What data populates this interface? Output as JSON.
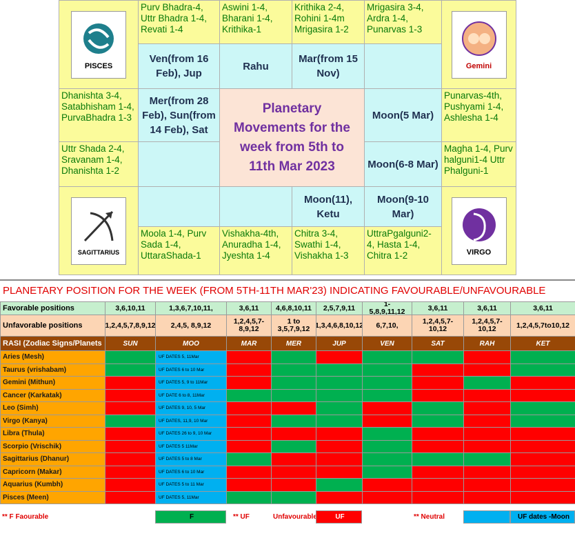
{
  "rasi_chart": {
    "title": "Planetary Movements for the week from 5th to 11th Mar 2023",
    "emblems": [
      "PISCES",
      "Gemini",
      "SAGITTARIUS",
      "VIRGO"
    ],
    "houses": [
      {
        "nakshatras": "Purv Bhadra-4, Uttr Bhadra 1-4, Revati 1-4",
        "planets": "Ven(from 16 Feb), Jup"
      },
      {
        "nakshatras": "Aswini 1-4, Bharani 1-4, Krithika-1",
        "planets": "Rahu"
      },
      {
        "nakshatras": "Krithika 2-4, Rohini 1-4m Mrigasira 1-2",
        "planets": "Mar(from 15 Nov)"
      },
      {
        "nakshatras": "Mrigasira 3-4, Ardra 1-4, Punarvas 1-3"
      },
      {
        "nakshatras": "Punarvas-4th, Pushyami 1-4, Ashlesha 1-4",
        "planets": "Moon(5 Mar)"
      },
      {
        "nakshatras": "Magha 1-4, Purv halguni1-4 Uttr Phalguni-1",
        "planets": "Moon(6-8 Mar)"
      },
      {
        "nakshatras": "UttraPgalguni2-4, Hasta 1-4, Chitra 1-2",
        "planets": "Moon(9-10 Mar)"
      },
      {
        "nakshatras": "Chitra 3-4, Swathi 1-4, Vishakha 1-3",
        "planets": "Moon(11), Ketu"
      },
      {
        "nakshatras": "Vishakha-4th, Anuradha 1-4, Jyeshta 1-4"
      },
      {
        "nakshatras": "Moola 1-4, Purv Sada 1-4, UttaraShada-1"
      },
      {
        "nakshatras": "Uttr Shada 2-4, Sravanam 1-4, Dhanishta 1-2"
      },
      {
        "nakshatras": "Dhanishta 3-4, Satabhisham 1-4, PurvaBhadra 1-3",
        "planets": "Mer(from 28 Feb), Sun(from 14 Feb), Sat"
      }
    ]
  },
  "table": {
    "title": "PLANETARY POSITION FOR THE WEEK (FROM 5TH-11TH MAR'23) INDICATING FAVOURABLE/UNFAVOURABLE",
    "favorable": {
      "label": "Favorable positions",
      "cells": [
        "3,6,10,11",
        "1,3,6,7,10,11,",
        "3,6,11",
        "4,6,8,10,11",
        "2,5,7,9,11",
        "1-5,8,9,11,12",
        "3,6,11",
        "3,6,11",
        "3,6,11"
      ]
    },
    "unfavorable": {
      "label": "Unfavorable positions",
      "cells": [
        "1,2,4,5,7,8,9,12",
        "2,4,5, 8,9,12",
        "1,2,4,5,7-8,9,12",
        "1 to 3,5,7,9,12",
        "1,3,4,6,8,10,12",
        "6,7,10,",
        "1,2,4,5,7-10,12",
        "1,2,4,5,7-10,12",
        "1,2,4,5,7to10,12"
      ]
    },
    "columns": [
      "RASI (Zodiac Signs/Planets",
      "SUN",
      "MOO",
      "MAR",
      "MER",
      "JUP",
      "VEN",
      "SAT",
      "RAH",
      "KET"
    ],
    "rows": [
      {
        "sign": "Aries (Mesh)",
        "moon": "UF DATES 5, 11Mar",
        "colors": [
          "#00b050",
          "#ff0000",
          "#00b050",
          "#ff0000",
          "#00b050",
          "#00b050",
          "#ff0000",
          "#00b050"
        ]
      },
      {
        "sign": "Taurus (vrishabam)",
        "moon": "UF DATES 6 to 10 Mar",
        "colors": [
          "#00b050",
          "#ff0000",
          "#00b050",
          "#00b050",
          "#00b050",
          "#ff0000",
          "#ff0000",
          "#00b050"
        ]
      },
      {
        "sign": "Gemini (Mithun)",
        "moon": "UF DATES 5, 9 to 11Mar",
        "colors": [
          "#ff0000",
          "#ff0000",
          "#00b050",
          "#00b050",
          "#00b050",
          "#ff0000",
          "#00b050",
          "#ff0000"
        ]
      },
      {
        "sign": "Cancer (Karkatak)",
        "moon": "UF DATE 6 to 8, 11Mar",
        "colors": [
          "#ff0000",
          "#00b050",
          "#00b050",
          "#00b050",
          "#00b050",
          "#ff0000",
          "#ff0000",
          "#ff0000"
        ]
      },
      {
        "sign": "Leo (Simh)",
        "moon": "UF DATES 9, 10, 5 Mar",
        "colors": [
          "#ff0000",
          "#ff0000",
          "#ff0000",
          "#00b050",
          "#ff0000",
          "#00b050",
          "#ff0000",
          "#00b050"
        ]
      },
      {
        "sign": "Virgo (Kanya)",
        "moon": "UF DATES, 11,9, 10 Mar",
        "colors": [
          "#00b050",
          "#ff0000",
          "#00b050",
          "#00b050",
          "#ff0000",
          "#00b050",
          "#ff0000",
          "#00b050"
        ]
      },
      {
        "sign": "Libra (Thula)",
        "moon": "UF DATES 26 to 9, 10 Mar",
        "colors": [
          "#ff0000",
          "#ff0000",
          "#ff0000",
          "#ff0000",
          "#00b050",
          "#ff0000",
          "#ff0000",
          "#ff0000"
        ]
      },
      {
        "sign": "Scorpio (Vrischik)",
        "moon": "UF DATES 5 11Mar",
        "colors": [
          "#ff0000",
          "#ff0000",
          "#00b050",
          "#ff0000",
          "#00b050",
          "#ff0000",
          "#ff0000",
          "#ff0000"
        ]
      },
      {
        "sign": "Sagittarius (Dhanur)",
        "moon": "UF DATES 5 to 8 Mar",
        "colors": [
          "#ff0000",
          "#00b050",
          "#ff0000",
          "#ff0000",
          "#00b050",
          "#00b050",
          "#00b050",
          "#ff0000"
        ]
      },
      {
        "sign": "Capricorn (Makar)",
        "moon": "UF DATES 6 to 10 Mar",
        "colors": [
          "#ff0000",
          "#ff0000",
          "#ff0000",
          "#ff0000",
          "#00b050",
          "#ff0000",
          "#ff0000",
          "#ff0000"
        ]
      },
      {
        "sign": "Aquarius (Kumbh)",
        "moon": "UF DATES 5 to 11 Mar",
        "colors": [
          "#ff0000",
          "#ff0000",
          "#ff0000",
          "#00b050",
          "#ff0000",
          "#ff0000",
          "#ff0000",
          "#ff0000"
        ]
      },
      {
        "sign": "Pisces (Meen)",
        "moon": "UF DATES 5, 11Mar",
        "colors": [
          "#ff0000",
          "#00b050",
          "#00b050",
          "#ff0000",
          "#ff0000",
          "#ff0000",
          "#ff0000",
          "#ff0000"
        ]
      }
    ],
    "legend": [
      "** F  Faourable",
      "F",
      "** UF",
      "Unfavourable",
      "UF",
      "** Neutral",
      "UF dates -Moon"
    ]
  }
}
